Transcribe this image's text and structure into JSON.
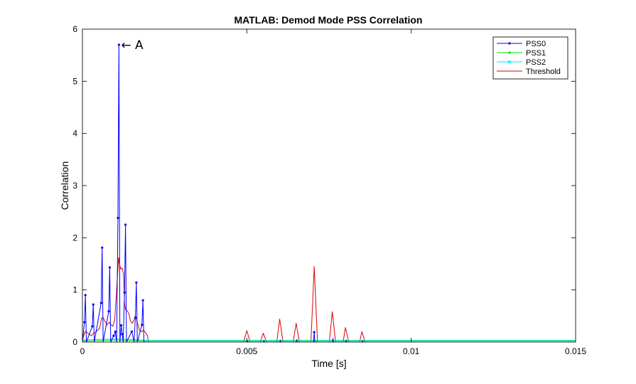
{
  "chart_data": {
    "type": "line",
    "title": "MATLAB: Demod Mode PSS Correlation",
    "xlabel": "Time [s]",
    "ylabel": "Correlation",
    "xlim": [
      0,
      0.015
    ],
    "ylim": [
      0,
      6
    ],
    "xticks": [
      0,
      0.005,
      0.01,
      0.015
    ],
    "xtick_labels": [
      "0",
      "0.005",
      "0.01",
      "0.015"
    ],
    "yticks": [
      0,
      1,
      2,
      3,
      4,
      5,
      6
    ],
    "ytick_labels": [
      "0",
      "1",
      "2",
      "3",
      "4",
      "5",
      "6"
    ],
    "grid": false,
    "legend_position": "top-right",
    "series": [
      {
        "name": "PSS0",
        "color": "#0000ff",
        "marker": "dot",
        "points": [
          [
            0.0,
            0.0
          ],
          [
            6e-05,
            0.38
          ],
          [
            9e-05,
            0.9
          ],
          [
            0.00012,
            0.0
          ],
          [
            0.0003,
            0.3
          ],
          [
            0.00033,
            0.72
          ],
          [
            0.00036,
            0.0
          ],
          [
            0.00057,
            0.75
          ],
          [
            0.0006,
            1.81
          ],
          [
            0.00063,
            0.0
          ],
          [
            0.0008,
            0.59
          ],
          [
            0.00083,
            1.43
          ],
          [
            0.00086,
            0.0
          ],
          [
            0.00095,
            0.12
          ],
          [
            0.001,
            0.2
          ],
          [
            0.00104,
            0.0
          ],
          [
            0.00108,
            2.38
          ],
          [
            0.00111,
            5.7
          ],
          [
            0.00114,
            0.0
          ],
          [
            0.00118,
            0.32
          ],
          [
            0.00121,
            0.15
          ],
          [
            0.00124,
            0.0
          ],
          [
            0.00128,
            0.95
          ],
          [
            0.00131,
            2.25
          ],
          [
            0.00134,
            0.0
          ],
          [
            0.0015,
            0.2
          ],
          [
            0.00154,
            0.1
          ],
          [
            0.00157,
            0.0
          ],
          [
            0.00161,
            0.47
          ],
          [
            0.00164,
            1.14
          ],
          [
            0.00167,
            0.0
          ],
          [
            0.00181,
            0.33
          ],
          [
            0.00184,
            0.8
          ],
          [
            0.00187,
            0.0
          ],
          [
            0.002,
            0.0
          ],
          [
            0.005,
            0.0
          ],
          [
            0.00502,
            0.03
          ],
          [
            0.00504,
            0.0
          ],
          [
            0.0055,
            0.0
          ],
          [
            0.00552,
            0.03
          ],
          [
            0.00554,
            0.0
          ],
          [
            0.006,
            0.0
          ],
          [
            0.00602,
            0.04
          ],
          [
            0.00604,
            0.0
          ],
          [
            0.0065,
            0.0
          ],
          [
            0.00652,
            0.05
          ],
          [
            0.00654,
            0.0
          ],
          [
            0.00703,
            0.0
          ],
          [
            0.00705,
            0.19
          ],
          [
            0.00707,
            0.0
          ],
          [
            0.0076,
            0.0
          ],
          [
            0.00762,
            0.07
          ],
          [
            0.00764,
            0.0
          ],
          [
            0.008,
            0.0
          ],
          [
            0.00802,
            0.04
          ],
          [
            0.00804,
            0.0
          ],
          [
            0.0085,
            0.0
          ],
          [
            0.00852,
            0.03
          ],
          [
            0.00854,
            0.0
          ],
          [
            0.015,
            0.0
          ]
        ]
      },
      {
        "name": "PSS1",
        "color": "#00dd00",
        "marker": "dot",
        "points": [
          [
            0.0,
            0.02
          ],
          [
            0.0005,
            0.03
          ],
          [
            0.001,
            0.04
          ],
          [
            0.0015,
            0.03
          ],
          [
            0.002,
            0.02
          ],
          [
            0.005,
            0.02
          ],
          [
            0.007,
            0.02
          ],
          [
            0.01,
            0.02
          ],
          [
            0.015,
            0.02
          ]
        ]
      },
      {
        "name": "PSS2",
        "color": "#00e5e5",
        "marker": "x",
        "points": [
          [
            0.0,
            0.04
          ],
          [
            0.0005,
            0.05
          ],
          [
            0.001,
            0.06
          ],
          [
            0.0015,
            0.05
          ],
          [
            0.002,
            0.03
          ],
          [
            0.005,
            0.03
          ],
          [
            0.007,
            0.03
          ],
          [
            0.01,
            0.03
          ],
          [
            0.015,
            0.03
          ]
        ]
      },
      {
        "name": "Threshold",
        "color": "#dd0000",
        "marker": "none",
        "points": [
          [
            0.0,
            0.0
          ],
          [
            3e-05,
            0.1
          ],
          [
            8e-05,
            0.2
          ],
          [
            0.00015,
            0.18
          ],
          [
            0.0002,
            0.15
          ],
          [
            0.00027,
            0.12
          ],
          [
            0.00032,
            0.16
          ],
          [
            0.00038,
            0.18
          ],
          [
            0.00045,
            0.22
          ],
          [
            0.00052,
            0.26
          ],
          [
            0.00058,
            0.45
          ],
          [
            0.00062,
            0.48
          ],
          [
            0.00068,
            0.4
          ],
          [
            0.00075,
            0.33
          ],
          [
            0.00082,
            0.38
          ],
          [
            0.00086,
            0.34
          ],
          [
            0.00092,
            0.3
          ],
          [
            0.00098,
            0.42
          ],
          [
            0.00103,
            0.9
          ],
          [
            0.00106,
            1.2
          ],
          [
            0.0011,
            1.62
          ],
          [
            0.00113,
            1.48
          ],
          [
            0.00117,
            1.4
          ],
          [
            0.00121,
            1.42
          ],
          [
            0.00125,
            1.3
          ],
          [
            0.00128,
            0.75
          ],
          [
            0.00131,
            0.62
          ],
          [
            0.00136,
            0.6
          ],
          [
            0.00141,
            0.55
          ],
          [
            0.00146,
            0.4
          ],
          [
            0.00152,
            0.36
          ],
          [
            0.00158,
            0.44
          ],
          [
            0.00163,
            0.48
          ],
          [
            0.00168,
            0.35
          ],
          [
            0.00174,
            0.22
          ],
          [
            0.0018,
            0.2
          ],
          [
            0.00186,
            0.23
          ],
          [
            0.00192,
            0.18
          ],
          [
            0.00198,
            0.12
          ],
          [
            0.00201,
            0.0
          ],
          [
            0.0049,
            0.0
          ],
          [
            0.005,
            0.22
          ],
          [
            0.0051,
            0.0
          ],
          [
            0.00541,
            0.0
          ],
          [
            0.0055,
            0.17
          ],
          [
            0.0056,
            0.0
          ],
          [
            0.00591,
            0.0
          ],
          [
            0.006,
            0.44
          ],
          [
            0.0061,
            0.0
          ],
          [
            0.00641,
            0.0
          ],
          [
            0.0065,
            0.36
          ],
          [
            0.0066,
            0.0
          ],
          [
            0.00695,
            0.0
          ],
          [
            0.00705,
            1.45
          ],
          [
            0.00715,
            0.0
          ],
          [
            0.00751,
            0.0
          ],
          [
            0.0076,
            0.58
          ],
          [
            0.0077,
            0.0
          ],
          [
            0.00793,
            0.0
          ],
          [
            0.008,
            0.28
          ],
          [
            0.0081,
            0.0
          ],
          [
            0.00843,
            0.0
          ],
          [
            0.0085,
            0.2
          ],
          [
            0.0086,
            0.0
          ],
          [
            0.015,
            0.0
          ]
        ]
      }
    ],
    "annotations": [
      {
        "text": "← A",
        "x": 0.00111,
        "y": 5.7
      }
    ]
  }
}
